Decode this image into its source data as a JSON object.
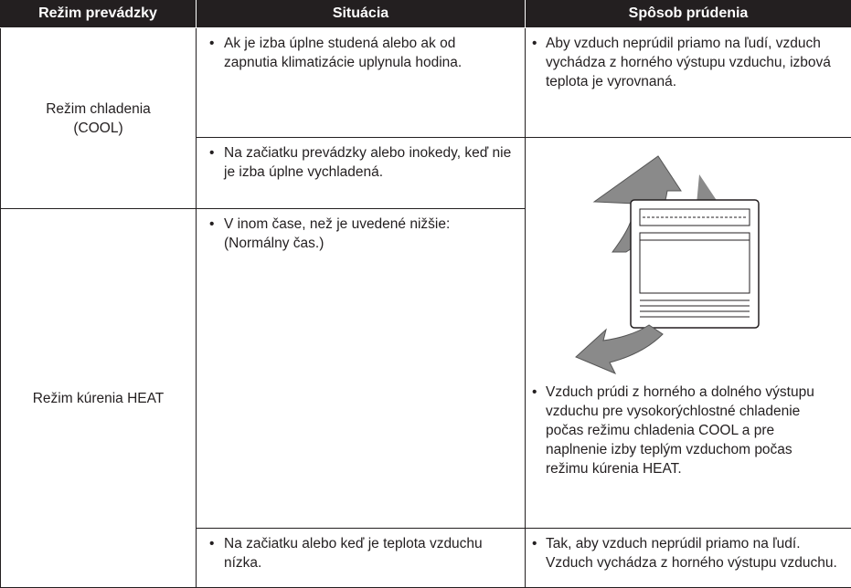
{
  "header": [
    "Režim prevádzky",
    "Situácia",
    "Spôsob prúdenia"
  ],
  "modes": [
    "Režim chladenia (COOL)",
    "Režim kúrenia HEAT"
  ],
  "situations": [
    "Ak je izba úplne studená alebo ak od zapnutia klimatizácie uplynula hodina.",
    "Na začiatku prevádzky alebo inokedy, keď nie je izba úplne vychladená.",
    "V inom čase, než je uvedené nižšie: (Normálny čas.)",
    "Na začiatku alebo keď je teplota vzduchu nízka."
  ],
  "airflow": [
    "Aby vzduch neprúdil priamo na ľudí, vzduch vychádza z horného výstupu vzduchu, izbová teplota je vyrovnaná.",
    "Vzduch prúdi z horného a dolného výstupu vzduchu pre vysokorýchlostné chladenie počas režimu chladenia COOL a pre naplnenie izby teplým vzduchom počas režimu kúrenia HEAT.",
    "Tak, aby vzduch neprúdil priamo na ľudí. Vzduch vychádza z horného výstupu vzduchu."
  ]
}
